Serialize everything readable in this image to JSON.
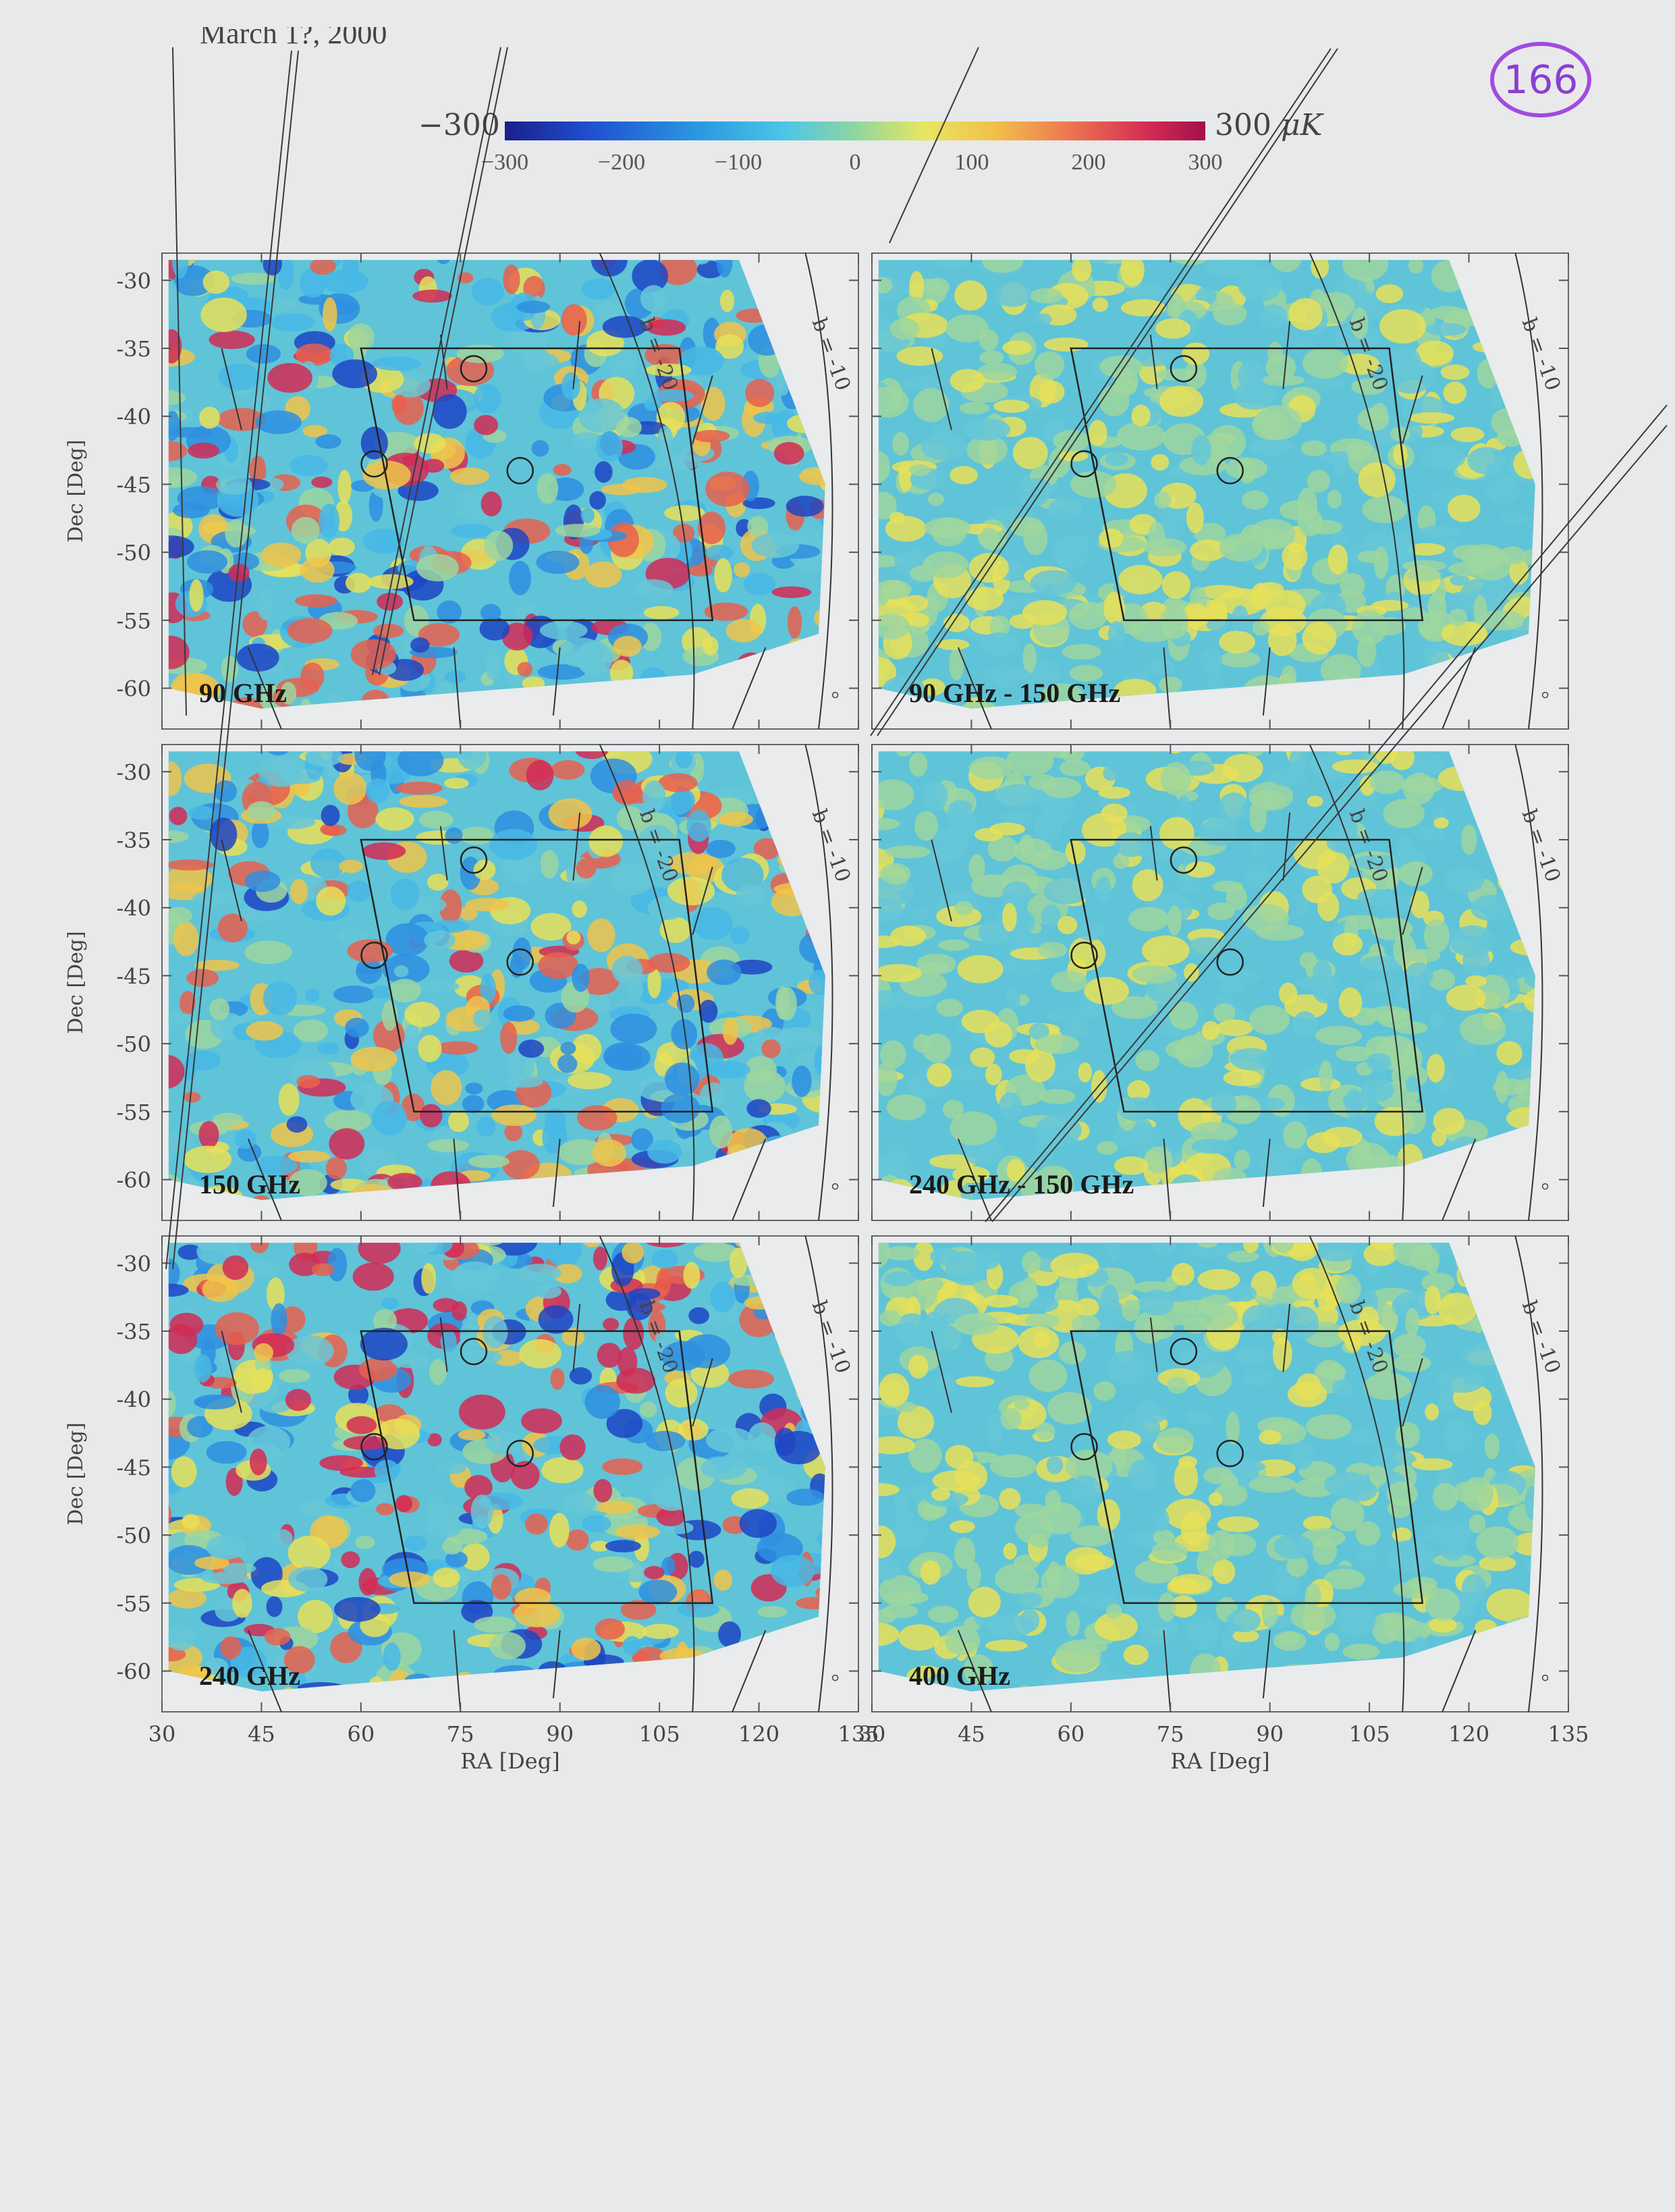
{
  "header_fragment": "March 1?, 2000",
  "page_number": "166",
  "colorbar": {
    "min_label": "−300",
    "max_label": "300",
    "unit": "μK",
    "ticks": [
      "−300",
      "−200",
      "−100",
      "0",
      "100",
      "200",
      "300"
    ],
    "colors": [
      "#1b1f8a",
      "#2a9ae0",
      "#8fd6a0",
      "#e8e660",
      "#d42a55"
    ]
  },
  "chart_data": [
    {
      "type": "heatmap",
      "title": "90 GHz",
      "xlabel": "",
      "ylabel": "Dec [Deg]",
      "xlim": [
        30,
        135
      ],
      "ylim": [
        -63,
        -28
      ],
      "grid": false
    },
    {
      "type": "heatmap",
      "title": "90 GHz - 150 GHz",
      "xlabel": "",
      "ylabel": "",
      "xlim": [
        30,
        135
      ],
      "ylim": [
        -63,
        -28
      ],
      "grid": false
    },
    {
      "type": "heatmap",
      "title": "150 GHz",
      "xlabel": "",
      "ylabel": "Dec [Deg]",
      "xlim": [
        30,
        135
      ],
      "ylim": [
        -63,
        -28
      ],
      "grid": false
    },
    {
      "type": "heatmap",
      "title": "240 GHz - 150 GHz",
      "xlabel": "",
      "ylabel": "",
      "xlim": [
        30,
        135
      ],
      "ylim": [
        -63,
        -28
      ],
      "grid": false
    },
    {
      "type": "heatmap",
      "title": "240 GHz",
      "xlabel": "RA [Deg]",
      "ylabel": "Dec [Deg]",
      "xlim": [
        30,
        135
      ],
      "ylim": [
        -63,
        -28
      ],
      "grid": false
    },
    {
      "type": "heatmap",
      "title": "400 GHz",
      "xlabel": "RA [Deg]",
      "ylabel": "",
      "xlim": [
        30,
        135
      ],
      "ylim": [
        -63,
        -28
      ],
      "grid": false
    }
  ],
  "panels": [
    {
      "label": "90 GHz",
      "ylabel": "Dec [Deg]",
      "xlabel": "",
      "strength": 1.0,
      "seed": 11
    },
    {
      "label": "90 GHz - 150 GHz",
      "ylabel": "",
      "xlabel": "",
      "strength": 0.35,
      "seed": 23
    },
    {
      "label": "150 GHz",
      "ylabel": "Dec [Deg]",
      "xlabel": "",
      "strength": 0.95,
      "seed": 37
    },
    {
      "label": "240 GHz - 150 GHz",
      "ylabel": "",
      "xlabel": "",
      "strength": 0.4,
      "seed": 51
    },
    {
      "label": "240 GHz",
      "ylabel": "Dec [Deg]",
      "xlabel": "RA [Deg]",
      "strength": 1.1,
      "seed": 67
    },
    {
      "label": "400 GHz",
      "ylabel": "",
      "xlabel": "RA [Deg]",
      "strength": 0.45,
      "seed": 83
    }
  ],
  "y_ticks": [
    -30,
    -35,
    -40,
    -45,
    -50,
    -55,
    -60
  ],
  "x_ticks": [
    30,
    45,
    60,
    75,
    90,
    105,
    120,
    135
  ],
  "contour_labels": {
    "b20": "b = -20",
    "b10": "b = -10"
  }
}
